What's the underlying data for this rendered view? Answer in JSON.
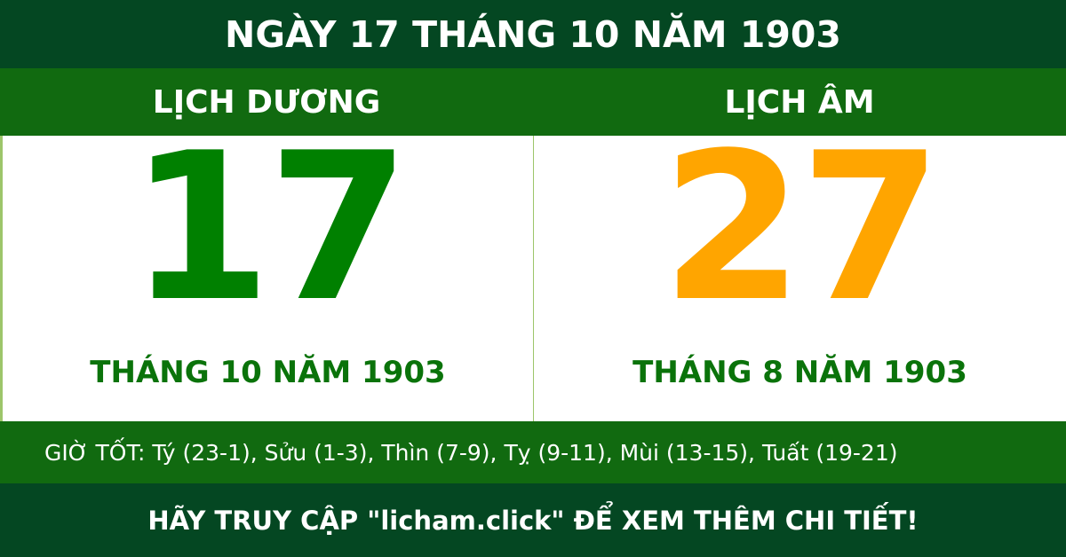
{
  "header": {
    "title": "NGÀY 17 THÁNG 10 NĂM 1903"
  },
  "solar": {
    "label": "LỊCH DƯƠNG",
    "day": "17",
    "month_year": "THÁNG 10 NĂM 1903",
    "color": "#008000"
  },
  "lunar": {
    "label": "LỊCH ÂM",
    "day": "27",
    "month_year": "THÁNG 8 NĂM 1903",
    "color": "#ffa500"
  },
  "good_hours": "GIỜ TỐT: Tý (23-1), Sửu (1-3), Thìn (7-9), Tỵ (9-11), Mùi (13-15), Tuất (19-21)",
  "footer": {
    "cta": "HÃY TRUY CẬP \"licham.click\" ĐỂ XEM THÊM CHI TIẾT!"
  }
}
